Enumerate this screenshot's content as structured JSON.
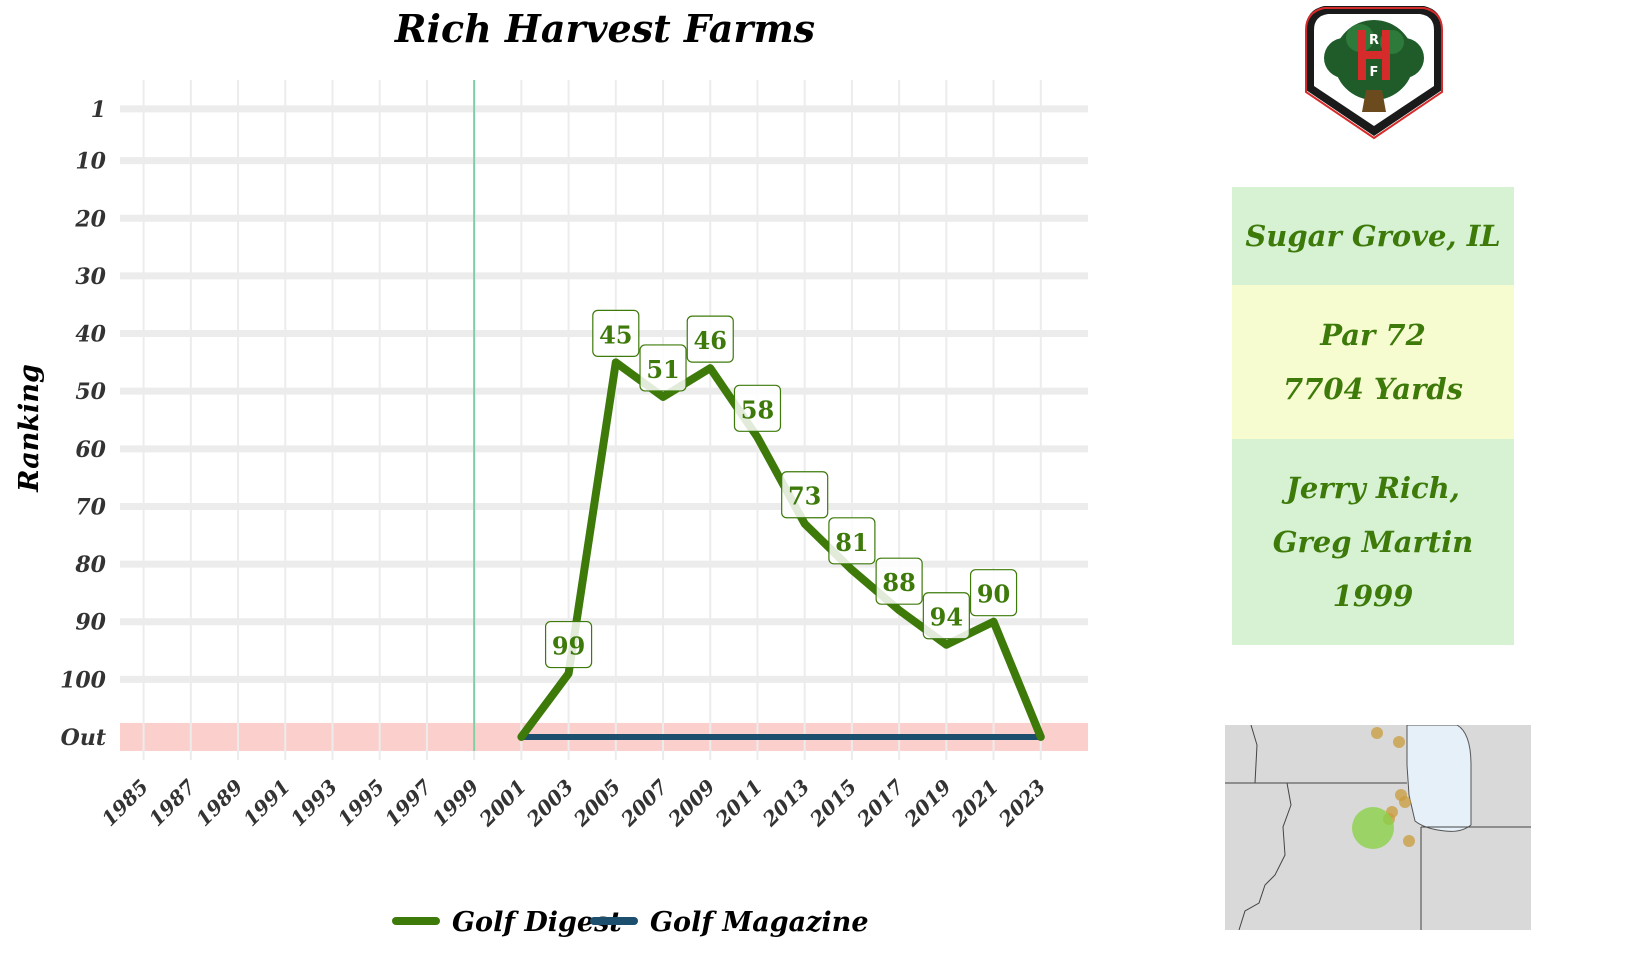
{
  "colors": {
    "golf_digest": "#3d7a0a",
    "golf_magazine": "#1c4e6e",
    "out_band": "#fbcfcc",
    "open_year_line": "#7fcfa6",
    "grid": "#ececec",
    "location_bg": "#d6f2d3",
    "specs_bg": "#f7fbd0",
    "architects_bg": "#d6f2d3",
    "label_text": "#3d7a0a"
  },
  "chart_data": {
    "type": "line",
    "title": "Rich Harvest Farms",
    "xlabel": "",
    "ylabel": "Ranking",
    "x_ticks": [
      "1985",
      "1987",
      "1989",
      "1991",
      "1993",
      "1995",
      "1997",
      "1999",
      "2001",
      "2003",
      "2005",
      "2007",
      "2009",
      "2011",
      "2013",
      "2015",
      "2017",
      "2019",
      "2021",
      "2023"
    ],
    "xlim": [
      1984,
      2025
    ],
    "y_tick_values": [
      1,
      10,
      20,
      30,
      40,
      50,
      60,
      70,
      80,
      90,
      100,
      110
    ],
    "y_tick_labels": [
      "1",
      "10",
      "20",
      "30",
      "40",
      "50",
      "60",
      "70",
      "80",
      "90",
      "100",
      "Out"
    ],
    "out_value": 110,
    "ylim": [
      -4,
      114
    ],
    "y_reversed": true,
    "grid": true,
    "open_year": 1999,
    "legend_position": "bottom",
    "series": [
      {
        "name": "Golf Digest",
        "x": [
          2001,
          2003,
          2005,
          2007,
          2009,
          2011,
          2013,
          2015,
          2017,
          2019,
          2021,
          2023
        ],
        "values": [
          110,
          99,
          45,
          51,
          46,
          58,
          73,
          81,
          88,
          94,
          90,
          110
        ],
        "labels": [
          "",
          "99",
          "45",
          "51",
          "46",
          "58",
          "73",
          "81",
          "88",
          "94",
          "90",
          ""
        ]
      },
      {
        "name": "Golf Magazine",
        "x": [
          2001,
          2003,
          2005,
          2007,
          2009,
          2011,
          2013,
          2015,
          2017,
          2019,
          2021,
          2023
        ],
        "values": [
          110,
          110,
          110,
          110,
          110,
          110,
          110,
          110,
          110,
          110,
          110,
          110
        ],
        "labels": []
      }
    ]
  },
  "logo": {
    "icon": "rhf-tree-shield-icon",
    "letters": [
      "R",
      "H",
      "F"
    ]
  },
  "info": {
    "location": "Sugar Grove, IL",
    "par": "Par 72",
    "yards": "7704 Yards",
    "architect_1": "Jerry Rich,",
    "architect_2": "Greg Martin",
    "year": "1999"
  },
  "map": {
    "icon": "regional-location-map"
  }
}
